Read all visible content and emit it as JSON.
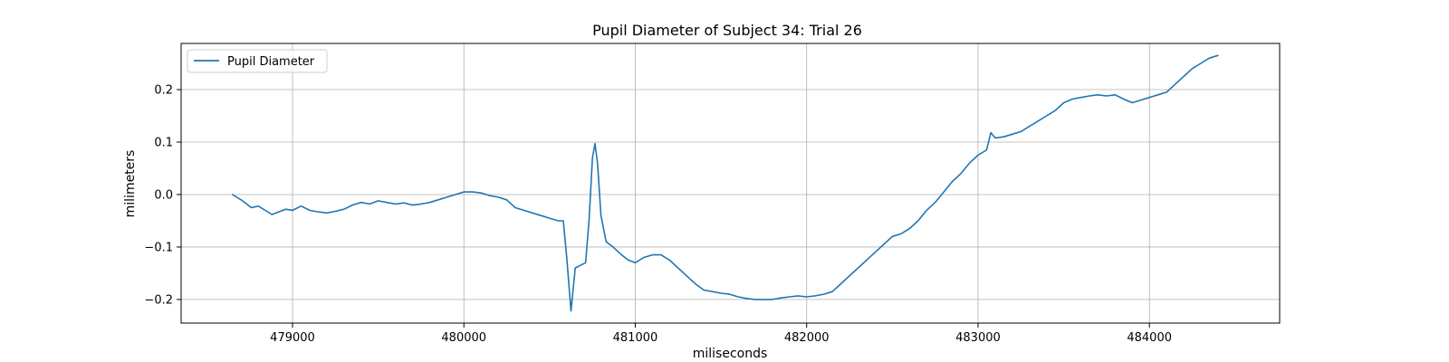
{
  "chart_data": {
    "type": "line",
    "title": "Pupil Diameter of Subject 34: Trial 26",
    "xlabel": "miliseconds",
    "ylabel": "milimeters",
    "xlim": [
      478350,
      484760
    ],
    "ylim": [
      -0.245,
      0.288
    ],
    "xticks": [
      479000,
      480000,
      481000,
      482000,
      483000,
      484000
    ],
    "yticks": [
      -0.2,
      -0.1,
      0.0,
      0.1,
      0.2
    ],
    "ytick_labels": [
      "−0.2",
      "−0.1",
      "0.0",
      "0.1",
      "0.2"
    ],
    "grid": true,
    "legend": "upper-left",
    "line_color": "#1f77b4",
    "series": [
      {
        "name": "Pupil Diameter",
        "points": [
          [
            478650,
            0.0
          ],
          [
            478700,
            -0.01
          ],
          [
            478760,
            -0.025
          ],
          [
            478800,
            -0.022
          ],
          [
            478850,
            -0.032
          ],
          [
            478880,
            -0.038
          ],
          [
            478920,
            -0.033
          ],
          [
            478960,
            -0.028
          ],
          [
            479000,
            -0.03
          ],
          [
            479050,
            -0.022
          ],
          [
            479100,
            -0.03
          ],
          [
            479150,
            -0.033
          ],
          [
            479200,
            -0.035
          ],
          [
            479250,
            -0.032
          ],
          [
            479300,
            -0.028
          ],
          [
            479350,
            -0.02
          ],
          [
            479400,
            -0.015
          ],
          [
            479450,
            -0.018
          ],
          [
            479500,
            -0.012
          ],
          [
            479550,
            -0.015
          ],
          [
            479600,
            -0.018
          ],
          [
            479650,
            -0.016
          ],
          [
            479700,
            -0.02
          ],
          [
            479750,
            -0.018
          ],
          [
            479800,
            -0.015
          ],
          [
            479850,
            -0.01
          ],
          [
            479900,
            -0.005
          ],
          [
            479950,
            0.0
          ],
          [
            480000,
            0.005
          ],
          [
            480050,
            0.005
          ],
          [
            480100,
            0.003
          ],
          [
            480150,
            -0.002
          ],
          [
            480200,
            -0.005
          ],
          [
            480250,
            -0.01
          ],
          [
            480300,
            -0.025
          ],
          [
            480350,
            -0.03
          ],
          [
            480400,
            -0.035
          ],
          [
            480450,
            -0.04
          ],
          [
            480500,
            -0.045
          ],
          [
            480550,
            -0.05
          ],
          [
            480580,
            -0.05
          ],
          [
            480600,
            -0.12
          ],
          [
            480625,
            -0.222
          ],
          [
            480650,
            -0.14
          ],
          [
            480680,
            -0.135
          ],
          [
            480710,
            -0.13
          ],
          [
            480730,
            -0.05
          ],
          [
            480750,
            0.07
          ],
          [
            480765,
            0.097
          ],
          [
            480780,
            0.06
          ],
          [
            480800,
            -0.04
          ],
          [
            480830,
            -0.09
          ],
          [
            480870,
            -0.1
          ],
          [
            480920,
            -0.115
          ],
          [
            480960,
            -0.125
          ],
          [
            481000,
            -0.13
          ],
          [
            481050,
            -0.12
          ],
          [
            481100,
            -0.115
          ],
          [
            481150,
            -0.115
          ],
          [
            481200,
            -0.125
          ],
          [
            481250,
            -0.14
          ],
          [
            481300,
            -0.155
          ],
          [
            481350,
            -0.17
          ],
          [
            481400,
            -0.182
          ],
          [
            481450,
            -0.185
          ],
          [
            481500,
            -0.188
          ],
          [
            481550,
            -0.19
          ],
          [
            481600,
            -0.195
          ],
          [
            481650,
            -0.198
          ],
          [
            481700,
            -0.2
          ],
          [
            481750,
            -0.2
          ],
          [
            481800,
            -0.2
          ],
          [
            481850,
            -0.197
          ],
          [
            481900,
            -0.195
          ],
          [
            481950,
            -0.193
          ],
          [
            482000,
            -0.195
          ],
          [
            482050,
            -0.193
          ],
          [
            482100,
            -0.19
          ],
          [
            482150,
            -0.185
          ],
          [
            482200,
            -0.17
          ],
          [
            482250,
            -0.155
          ],
          [
            482300,
            -0.14
          ],
          [
            482350,
            -0.125
          ],
          [
            482400,
            -0.11
          ],
          [
            482450,
            -0.095
          ],
          [
            482500,
            -0.08
          ],
          [
            482550,
            -0.075
          ],
          [
            482600,
            -0.065
          ],
          [
            482650,
            -0.05
          ],
          [
            482700,
            -0.03
          ],
          [
            482750,
            -0.015
          ],
          [
            482800,
            0.005
          ],
          [
            482850,
            0.025
          ],
          [
            482900,
            0.04
          ],
          [
            482950,
            0.06
          ],
          [
            483000,
            0.075
          ],
          [
            483050,
            0.085
          ],
          [
            483075,
            0.118
          ],
          [
            483100,
            0.108
          ],
          [
            483150,
            0.11
          ],
          [
            483200,
            0.115
          ],
          [
            483250,
            0.12
          ],
          [
            483300,
            0.13
          ],
          [
            483350,
            0.14
          ],
          [
            483400,
            0.15
          ],
          [
            483450,
            0.16
          ],
          [
            483500,
            0.175
          ],
          [
            483550,
            0.182
          ],
          [
            483600,
            0.185
          ],
          [
            483650,
            0.188
          ],
          [
            483700,
            0.19
          ],
          [
            483750,
            0.188
          ],
          [
            483800,
            0.19
          ],
          [
            483850,
            0.182
          ],
          [
            483900,
            0.175
          ],
          [
            483950,
            0.18
          ],
          [
            484000,
            0.185
          ],
          [
            484050,
            0.19
          ],
          [
            484100,
            0.195
          ],
          [
            484150,
            0.21
          ],
          [
            484200,
            0.225
          ],
          [
            484250,
            0.24
          ],
          [
            484300,
            0.25
          ],
          [
            484350,
            0.26
          ],
          [
            484400,
            0.265
          ]
        ]
      }
    ]
  }
}
